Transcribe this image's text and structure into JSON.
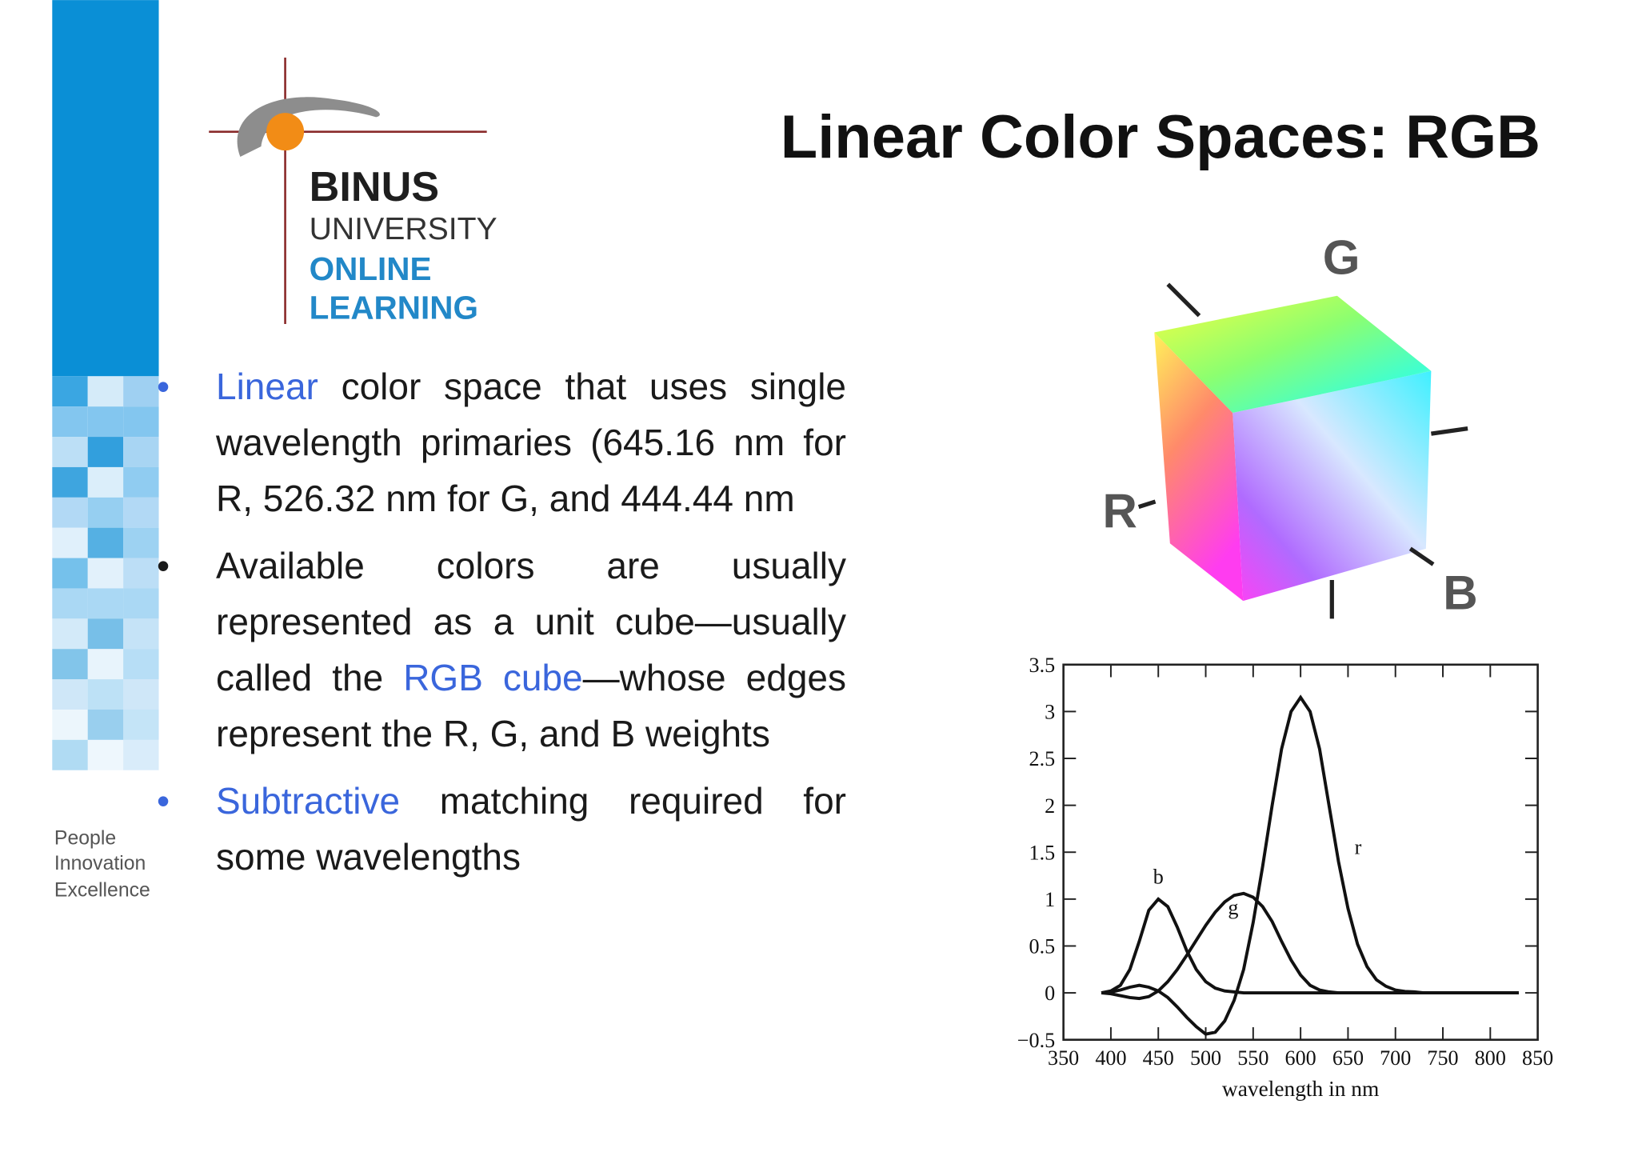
{
  "slide": {
    "logo": {
      "line1": "BINUS",
      "line2": "UNIVERSITY",
      "line3": "ONLINE",
      "line4": "LEARNING"
    },
    "tagline": [
      "People",
      "Innovation",
      "Excellence"
    ],
    "title": "Linear Color Spaces: RGB",
    "bullets": [
      [
        {
          "text": "Linear",
          "link": true
        },
        {
          "text": " color space that uses single wavelength primaries (645.16 nm for R, 526.32 nm for G, and 444.44 nm",
          "link": false
        }
      ],
      [
        {
          "text": "Available colors are usually represented as a unit cube—usually called the ",
          "link": false
        },
        {
          "text": "RGB cube",
          "link": true
        },
        {
          "text": "—whose edges represent the R, G, and B weights",
          "link": false
        }
      ],
      [
        {
          "text": "Subtractive",
          "link": true
        },
        {
          "text": " matching required for some wavelengths",
          "link": false
        }
      ]
    ],
    "cube_labels": [
      "G",
      "R",
      "B"
    ]
  },
  "chart_data": {
    "type": "line",
    "xlabel": "wavelength in nm",
    "x": [
      390,
      400,
      410,
      420,
      430,
      440,
      450,
      460,
      470,
      480,
      490,
      500,
      510,
      520,
      530,
      540,
      550,
      560,
      570,
      580,
      590,
      600,
      610,
      620,
      630,
      640,
      650,
      660,
      670,
      680,
      690,
      700,
      710,
      720,
      730,
      740,
      750,
      760,
      770,
      780,
      790,
      800,
      810,
      820,
      830
    ],
    "series": [
      {
        "name": "r",
        "color": "#111111",
        "values": [
          0,
          0.01,
          0.03,
          0.06,
          0.08,
          0.06,
          0.02,
          -0.05,
          -0.15,
          -0.26,
          -0.36,
          -0.44,
          -0.42,
          -0.3,
          -0.08,
          0.25,
          0.75,
          1.35,
          2.0,
          2.6,
          3.0,
          3.15,
          3.0,
          2.6,
          2.0,
          1.4,
          0.9,
          0.52,
          0.28,
          0.14,
          0.07,
          0.03,
          0.015,
          0.01,
          0,
          0,
          0,
          0,
          0,
          0,
          0,
          0,
          0,
          0,
          0
        ]
      },
      {
        "name": "g",
        "color": "#111111",
        "values": [
          0,
          -0.01,
          -0.03,
          -0.05,
          -0.06,
          -0.04,
          0.02,
          0.12,
          0.25,
          0.4,
          0.56,
          0.72,
          0.86,
          0.97,
          1.04,
          1.06,
          1.02,
          0.92,
          0.76,
          0.55,
          0.35,
          0.19,
          0.08,
          0.03,
          0.01,
          0,
          0,
          0,
          0,
          0,
          0,
          0,
          0,
          0,
          0,
          0,
          0,
          0,
          0,
          0,
          0,
          0,
          0,
          0,
          0
        ]
      },
      {
        "name": "b",
        "color": "#111111",
        "values": [
          0,
          0.02,
          0.08,
          0.25,
          0.55,
          0.88,
          1.0,
          0.92,
          0.7,
          0.45,
          0.25,
          0.12,
          0.05,
          0.02,
          0.01,
          0,
          0,
          0,
          0,
          0,
          0,
          0,
          0,
          0,
          0,
          0,
          0,
          0,
          0,
          0,
          0,
          0,
          0,
          0,
          0,
          0,
          0,
          0,
          0,
          0,
          0,
          0,
          0,
          0,
          0
        ]
      }
    ],
    "xlim": [
      350,
      850
    ],
    "ylim": [
      -0.5,
      3.5
    ],
    "xticks": [
      350,
      400,
      450,
      500,
      550,
      600,
      650,
      700,
      750,
      800,
      850
    ],
    "yticks": [
      {
        "value": -0.5,
        "label": "−0.5"
      },
      0,
      0.5,
      1,
      1.5,
      2,
      2.5,
      3,
      3.5
    ]
  }
}
